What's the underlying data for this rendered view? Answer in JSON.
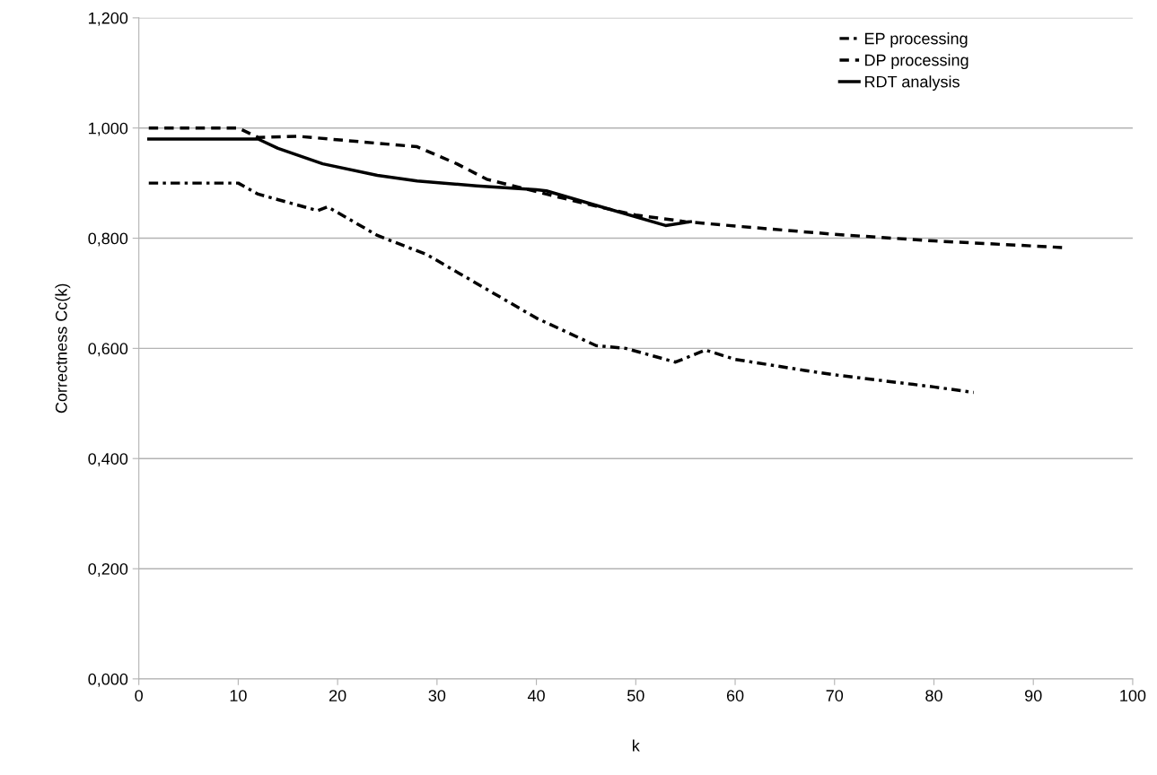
{
  "chart_data": {
    "type": "line",
    "xlabel": "k",
    "ylabel": "Correctness Cc(k)",
    "xlim": [
      0,
      100
    ],
    "xticks": [
      0,
      10,
      20,
      30,
      40,
      50,
      60,
      70,
      80,
      90,
      100
    ],
    "ylim": [
      0,
      1.2
    ],
    "yticks": [
      {
        "value": 0,
        "label": "0,000"
      },
      {
        "value": 0.2,
        "label": "0,200"
      },
      {
        "value": 0.4,
        "label": "0,400"
      },
      {
        "value": 0.6,
        "label": "0,600"
      },
      {
        "value": 0.8,
        "label": "0,800"
      },
      {
        "value": 1.0,
        "label": "1,000"
      },
      {
        "value": 1.2,
        "label": "1,200"
      }
    ],
    "grid": "y",
    "legend": "top right",
    "marker": "none",
    "series": [
      {
        "name": "EP processing",
        "color": "#000000",
        "line_style": "dotted",
        "x": [
          1,
          10,
          12,
          18,
          19,
          24,
          29,
          40,
          46,
          49,
          54,
          57,
          60,
          67,
          70,
          80,
          84
        ],
        "values": [
          0.9,
          0.9,
          0.88,
          0.85,
          0.857,
          0.805,
          0.77,
          0.655,
          0.605,
          0.6,
          0.575,
          0.597,
          0.58,
          0.56,
          0.552,
          0.53,
          0.52
        ]
      },
      {
        "name": "DP processing",
        "color": "#000000",
        "line_style": "dashed",
        "x": [
          1,
          10,
          12,
          16,
          28,
          32,
          35,
          41,
          46,
          50,
          55,
          60,
          70,
          80,
          93
        ],
        "values": [
          1.0,
          1.0,
          0.983,
          0.985,
          0.966,
          0.935,
          0.907,
          0.88,
          0.858,
          0.842,
          0.83,
          0.822,
          0.807,
          0.795,
          0.783
        ]
      },
      {
        "name": "RDT analysis",
        "color": "#000000",
        "line_style": "solid",
        "x": [
          1,
          12,
          14,
          18.5,
          24,
          28,
          34,
          40,
          41,
          46.5,
          53,
          55.5
        ],
        "values": [
          0.98,
          0.98,
          0.963,
          0.935,
          0.914,
          0.904,
          0.895,
          0.888,
          0.886,
          0.857,
          0.823,
          0.83
        ]
      }
    ]
  }
}
